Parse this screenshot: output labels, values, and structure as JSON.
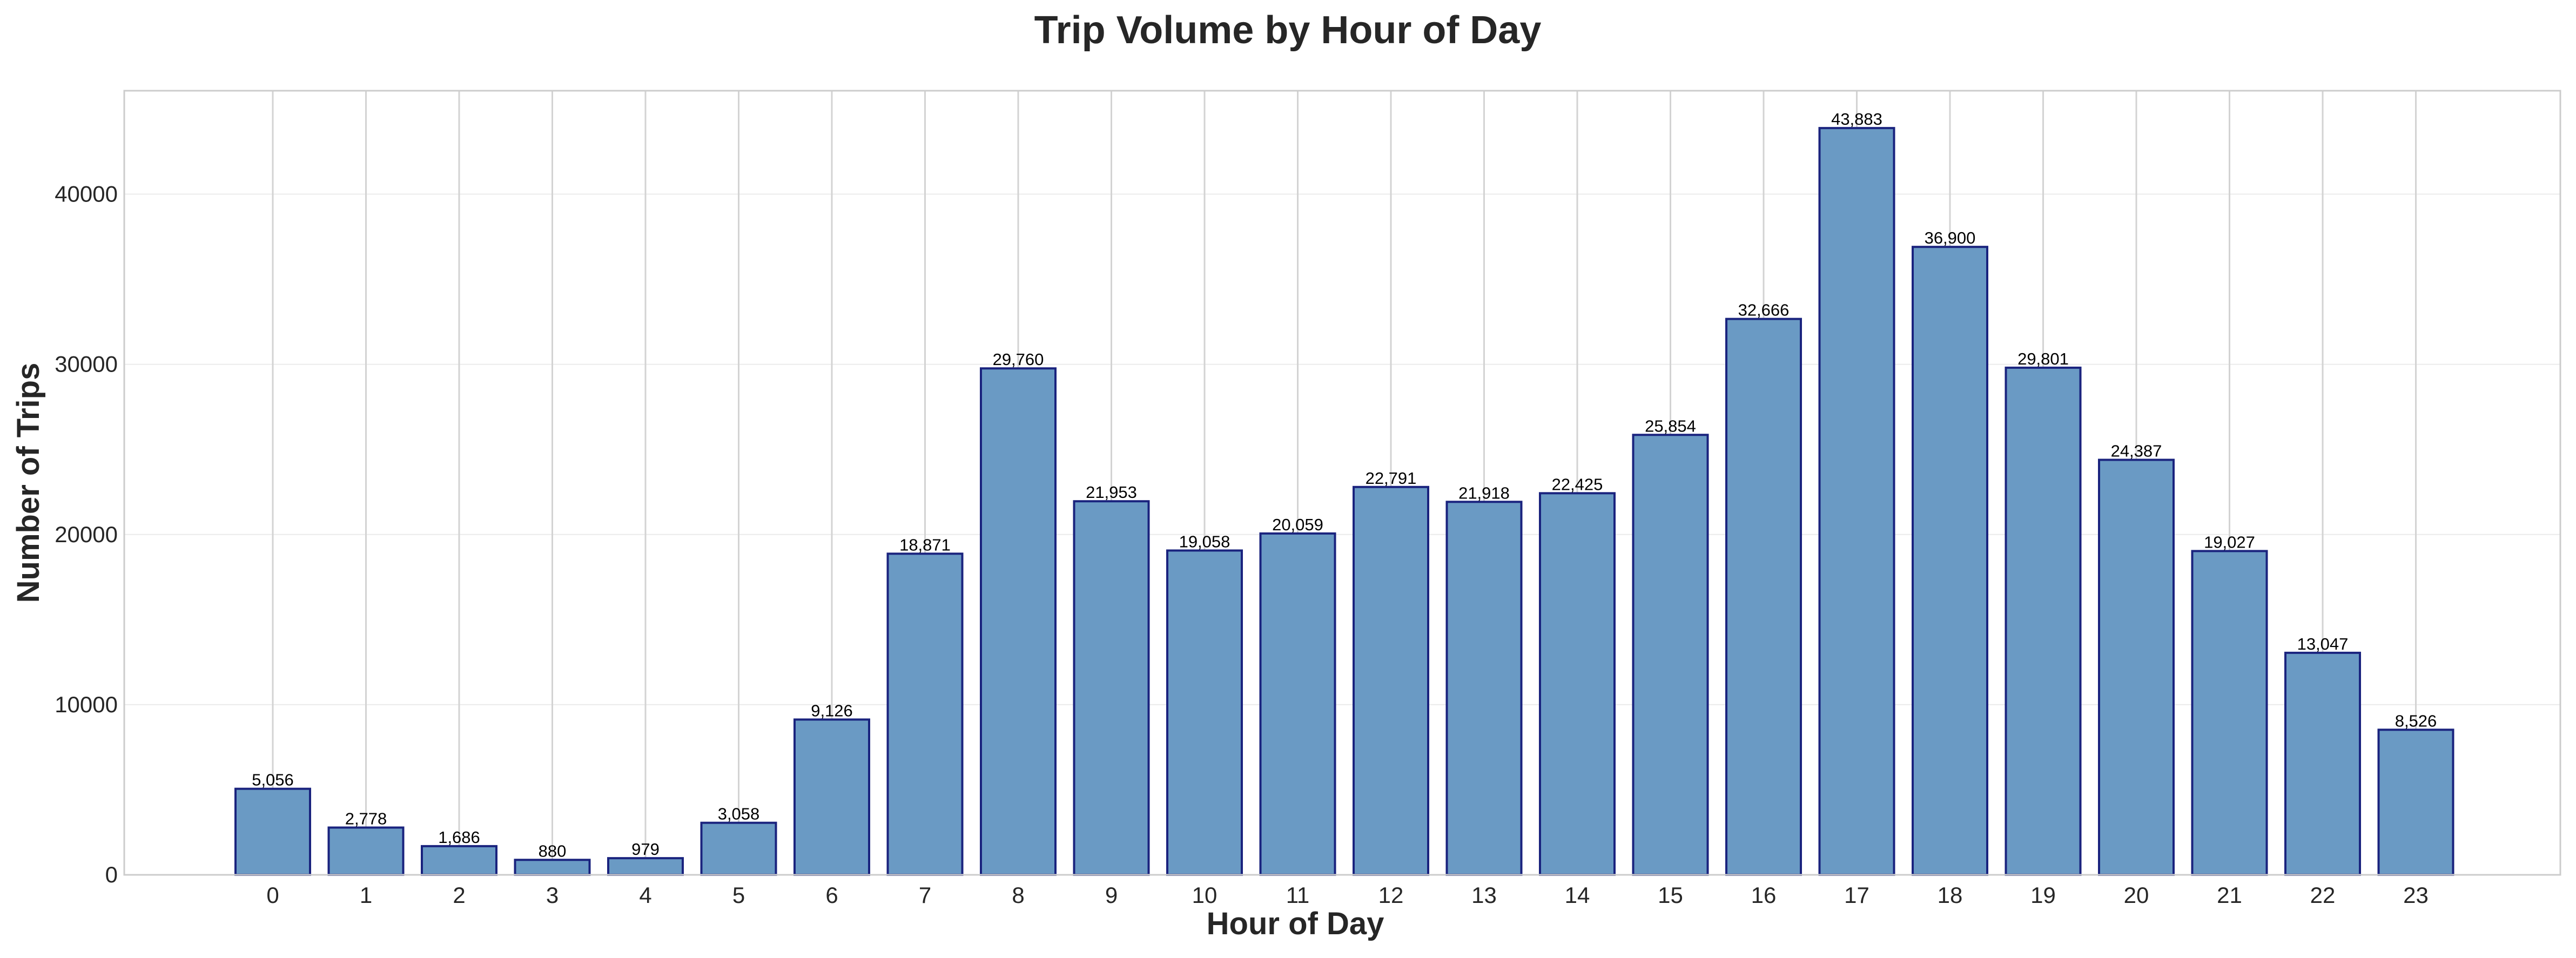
{
  "chart_data": {
    "type": "bar",
    "title": "Trip Volume by Hour of Day",
    "xlabel": "Hour of Day",
    "ylabel": "Number of Trips",
    "categories": [
      "0",
      "1",
      "2",
      "3",
      "4",
      "5",
      "6",
      "7",
      "8",
      "9",
      "10",
      "11",
      "12",
      "13",
      "14",
      "15",
      "16",
      "17",
      "18",
      "19",
      "20",
      "21",
      "22",
      "23"
    ],
    "values": [
      5056,
      2778,
      1686,
      880,
      979,
      3058,
      9126,
      18871,
      29760,
      21953,
      19058,
      20059,
      22791,
      21918,
      22425,
      25854,
      32666,
      43883,
      36900,
      29801,
      24387,
      19027,
      13047,
      8526
    ],
    "value_labels": [
      "5,056",
      "2,778",
      "1,686",
      "880",
      "979",
      "3,058",
      "9,126",
      "18,871",
      "29,760",
      "21,953",
      "19,058",
      "20,059",
      "22,791",
      "21,918",
      "22,425",
      "25,854",
      "32,666",
      "43,883",
      "36,900",
      "29,801",
      "24,387",
      "19,027",
      "13,047",
      "8,526"
    ],
    "ylim": [
      0,
      46077
    ],
    "yticks": [
      0,
      10000,
      20000,
      30000,
      40000
    ],
    "ytick_labels": [
      "0",
      "10000",
      "20000",
      "30000",
      "40000"
    ],
    "grid": true,
    "legend": "none",
    "bar_color": "#6a9ac4",
    "bar_edge_color": "#1a237e"
  }
}
